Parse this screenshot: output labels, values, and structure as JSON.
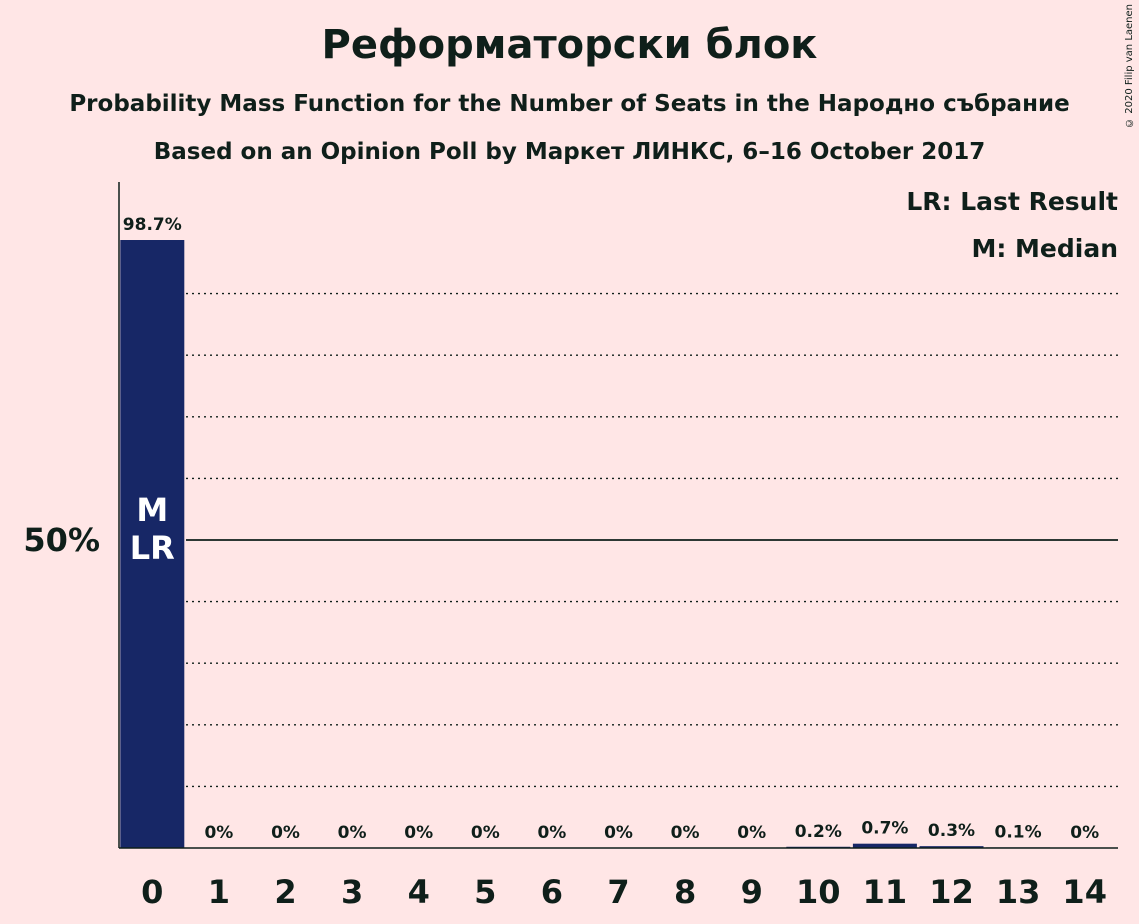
{
  "title": "Реформаторски блок",
  "subtitle1": "Probability Mass Function for the Number of Seats in the Народно събрание",
  "subtitle2": "Based on an Opinion Poll by Маркет ЛИНКС, 6–16 October 2017",
  "copyright": "© 2020 Filip van Laenen",
  "legend": {
    "last_result": "LR: Last Result",
    "median": "M: Median"
  },
  "colors": {
    "background": "#FFE6E6",
    "bar": "#172766",
    "text": "#0F1F1A",
    "bar_text": "#FFFFFF"
  },
  "chart_data": {
    "type": "bar",
    "categories": [
      "0",
      "1",
      "2",
      "3",
      "4",
      "5",
      "6",
      "7",
      "8",
      "9",
      "10",
      "11",
      "12",
      "13",
      "14"
    ],
    "values": [
      98.7,
      0,
      0,
      0,
      0,
      0,
      0,
      0,
      0,
      0,
      0.2,
      0.7,
      0.3,
      0.1,
      0
    ],
    "value_labels": [
      "98.7%",
      "0%",
      "0%",
      "0%",
      "0%",
      "0%",
      "0%",
      "0%",
      "0%",
      "0%",
      "0.2%",
      "0.7%",
      "0.3%",
      "0.1%",
      "0%"
    ],
    "ylim": [
      0,
      100
    ],
    "y_tick_label": "50%",
    "y_tick_value": 50,
    "gridlines": [
      10,
      20,
      30,
      40,
      60,
      70,
      80,
      90
    ],
    "median_index": 0,
    "last_result_index": 0,
    "median_marker": "M",
    "last_result_marker": "LR"
  }
}
